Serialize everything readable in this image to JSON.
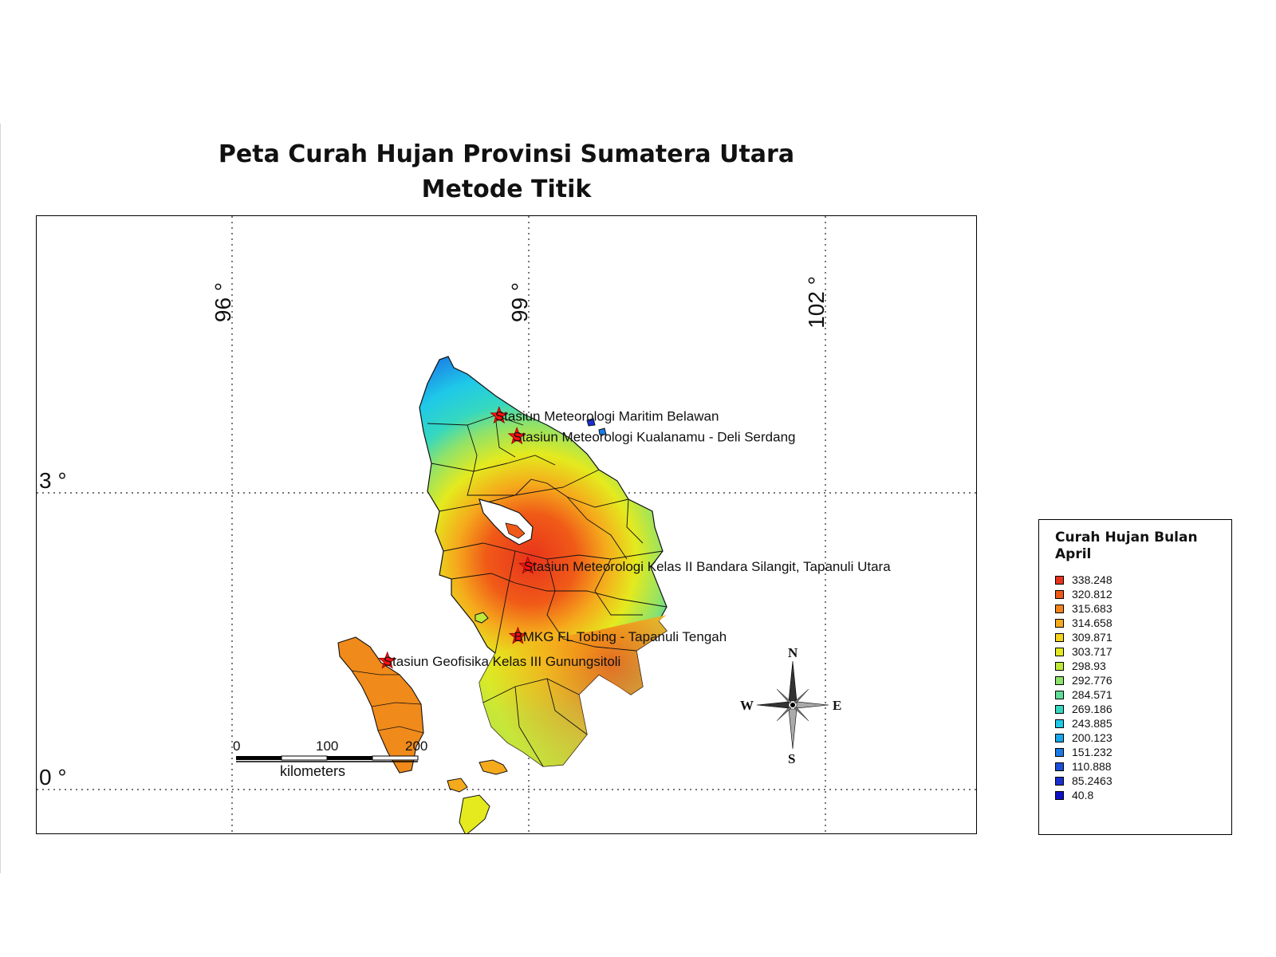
{
  "title": {
    "line1": "Peta Curah Hujan Provinsi Sumatera Utara",
    "line2": "Metode Titik"
  },
  "grid": {
    "longitudes": [
      {
        "value": 96,
        "label": "96 °"
      },
      {
        "value": 99,
        "label": "99 °"
      },
      {
        "value": 102,
        "label": "102 °"
      }
    ],
    "latitudes": [
      {
        "value": 3,
        "label": "3 °"
      },
      {
        "value": 0,
        "label": "0 °"
      }
    ]
  },
  "stations": [
    {
      "name": "Stasiun Meteorologi Maritim Belawan",
      "lon": 98.7,
      "lat": 3.78
    },
    {
      "name": "Stasiun Meteorologi Kualanamu - Deli Serdang",
      "lon": 98.88,
      "lat": 3.57
    },
    {
      "name": "Stasiun Meteorologi Kelas II Bandara Silangit, Tapanuli Utara",
      "lon": 98.99,
      "lat": 2.26
    },
    {
      "name": "BMKG FL Tobing - Tapanuli Tengah",
      "lon": 98.89,
      "lat": 1.55
    },
    {
      "name": "Stasiun Geofisika Kelas III Gunungsitoli",
      "lon": 97.57,
      "lat": 1.3
    }
  ],
  "scale_bar": {
    "ticks": [
      "0",
      "100",
      "200"
    ],
    "unit": "kilometers"
  },
  "compass": {
    "n": "N",
    "s": "S",
    "e": "E",
    "w": "W"
  },
  "legend": {
    "title": "Curah Hujan Bulan April",
    "items": [
      {
        "label": "338.248",
        "color": "#e8331c"
      },
      {
        "label": "320.812",
        "color": "#f05a18"
      },
      {
        "label": "315.683",
        "color": "#f4841a"
      },
      {
        "label": "314.658",
        "color": "#f5aa1c"
      },
      {
        "label": "309.871",
        "color": "#f5d21c"
      },
      {
        "label": "303.717",
        "color": "#e4ea1e"
      },
      {
        "label": "298.93",
        "color": "#bfe83a"
      },
      {
        "label": "292.776",
        "color": "#8fe26a"
      },
      {
        "label": "284.571",
        "color": "#5fdc96"
      },
      {
        "label": "269.186",
        "color": "#35d8bf"
      },
      {
        "label": "243.885",
        "color": "#1fc9e8"
      },
      {
        "label": "200.123",
        "color": "#1aa6ea"
      },
      {
        "label": "151.232",
        "color": "#1a7ae6"
      },
      {
        "label": "110.888",
        "color": "#1a4fd9"
      },
      {
        "label": "85.2463",
        "color": "#1a2fd0"
      },
      {
        "label": "40.8",
        "color": "#1010c8"
      }
    ]
  }
}
